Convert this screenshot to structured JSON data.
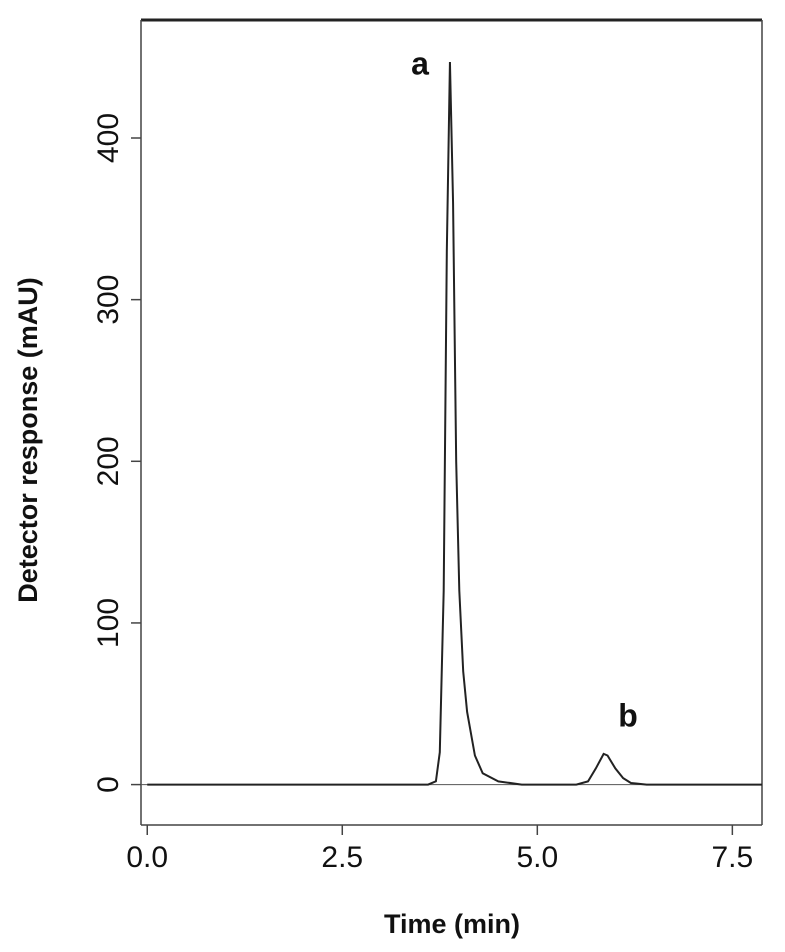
{
  "chart_data": {
    "type": "line",
    "x_label": "Time (min)",
    "y_label": "Detector response (mAU)",
    "annotations": [
      "a",
      "b"
    ],
    "x": [
      0,
      3.6,
      3.7,
      3.75,
      3.8,
      3.84,
      3.88,
      3.92,
      3.96,
      4.0,
      4.05,
      4.1,
      4.2,
      4.3,
      4.5,
      4.8,
      5.5,
      5.65,
      5.75,
      5.85,
      5.9,
      6.0,
      6.1,
      6.2,
      6.4,
      7.88
    ],
    "series": [
      {
        "color": "#222222",
        "values": [
          0,
          0,
          2,
          20,
          120,
          330,
          447,
          360,
          200,
          120,
          70,
          45,
          18,
          7,
          2,
          0,
          0,
          2,
          10,
          19,
          18,
          10,
          4,
          1,
          0,
          0
        ]
      }
    ],
    "xlim": [
      -0.08,
      7.88
    ],
    "ylim": [
      -25,
      473
    ],
    "xticks": [
      {
        "value": 0,
        "label": "0.0"
      },
      2.5,
      {
        "value": 5,
        "label": "5.0"
      },
      7.5
    ],
    "yticks": [
      0,
      100,
      200,
      300,
      400
    ]
  }
}
